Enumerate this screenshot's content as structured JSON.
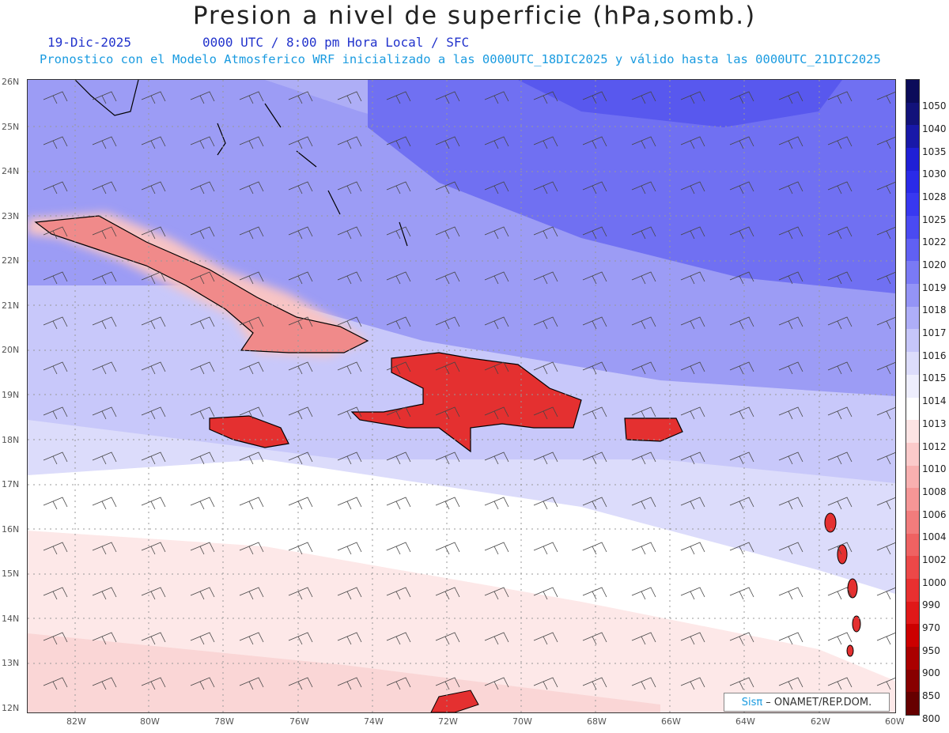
{
  "title": "Presion a nivel de superficie (hPa,somb.)",
  "date": "19-Dic-2025",
  "valid_line": "0000 UTC / 8:00 pm Hora Local / SFC",
  "forecast_line": "Pronostico con el Modelo Atmosferico WRF inicializado a las 0000UTC_18DIC2025 y válido hasta las  0000UTC_21DIC2025",
  "lat_labels": [
    "26N",
    "25N",
    "24N",
    "23N",
    "22N",
    "21N",
    "20N",
    "19N",
    "18N",
    "17N",
    "16N",
    "15N",
    "14N",
    "13N",
    "12N"
  ],
  "lon_labels": [
    "82W",
    "80W",
    "78W",
    "76W",
    "74W",
    "72W",
    "70W",
    "68W",
    "66W",
    "64W",
    "62W",
    "60W"
  ],
  "colorbar": {
    "labels": [
      "1050",
      "1040",
      "1035",
      "1030",
      "1028",
      "1025",
      "1022",
      "1020",
      "1019",
      "1018",
      "1017",
      "1016",
      "1015",
      "1014",
      "1013",
      "1012",
      "1010",
      "1008",
      "1006",
      "1004",
      "1002",
      "1000",
      "990",
      "970",
      "950",
      "900",
      "850",
      "800"
    ],
    "colors": [
      "#0b0b5a",
      "#12127a",
      "#1818a8",
      "#1f1fd6",
      "#2a2ae8",
      "#3838f0",
      "#4a4af2",
      "#6060f4",
      "#7a7af5",
      "#9494f6",
      "#aeaef8",
      "#c6c6fa",
      "#dcdcfb",
      "#eeeefd",
      "#ffffff",
      "#fde4e4",
      "#fbcaca",
      "#f8b0b0",
      "#f59696",
      "#f27c7c",
      "#ef6262",
      "#ec4848",
      "#e83030",
      "#e01818",
      "#cc0000",
      "#aa0000",
      "#880000",
      "#660000"
    ]
  },
  "map_colors": {
    "deep": "#5a5af2",
    "mid": "#8e8ef5",
    "light": "#b8b8f8",
    "pale": "#dadafb",
    "white": "#ffffff",
    "pink": "#fde6e6",
    "pink2": "#fad4d4",
    "land": "#e83a3a",
    "land_light": "#f6b0b0"
  },
  "credit": {
    "brand": "Sisπ",
    "org": "– ONAMET/REP.DOM."
  }
}
